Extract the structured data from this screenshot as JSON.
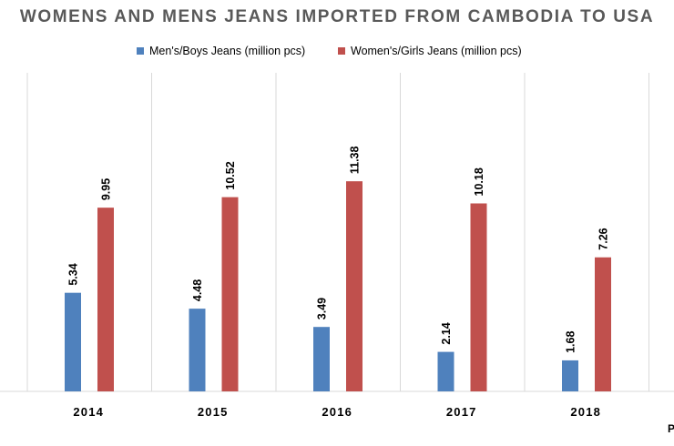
{
  "chart_data": {
    "type": "bar",
    "title": "WOMENS AND MENS JEANS IMPORTED FROM CAMBODIA TO USA",
    "categories": [
      "2014",
      "2015",
      "2016",
      "2017",
      "2018"
    ],
    "series": [
      {
        "name": "Men's/Boys Jeans (million pcs)",
        "color": "#4f81bd",
        "values": [
          5.34,
          4.48,
          3.49,
          2.14,
          1.68
        ]
      },
      {
        "name": "Women's/Girls  Jeans (million pcs)",
        "color": "#c0504d",
        "values": [
          9.95,
          10.52,
          11.38,
          10.18,
          7.26
        ]
      }
    ],
    "ylim": [
      0,
      14
    ],
    "legend_position": "top",
    "grid": false,
    "vertical_separators": true,
    "data_labels": true,
    "corner_text": "P"
  }
}
